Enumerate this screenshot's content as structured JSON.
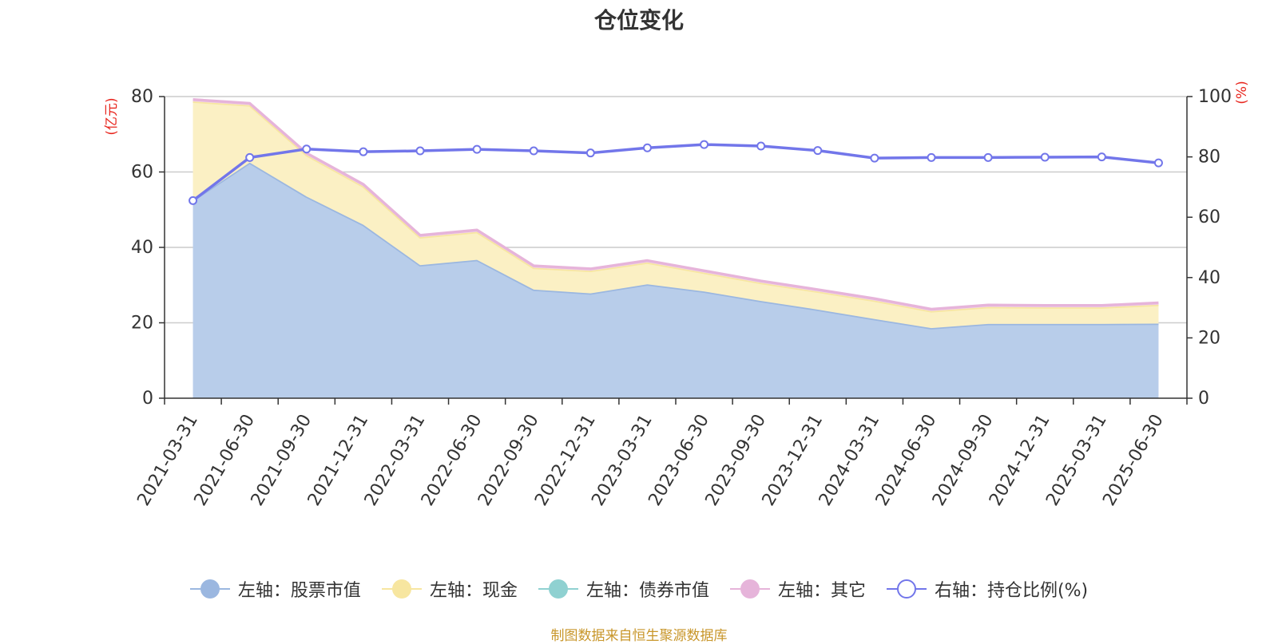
{
  "chart_data": {
    "type": "area",
    "title": "仓位变化",
    "y_left_unit": "(亿元)",
    "y_right_unit": "(%)",
    "ylim_left": [
      0,
      80
    ],
    "ylim_right": [
      0,
      100
    ],
    "y_left_ticks": [
      0,
      20,
      40,
      60,
      80
    ],
    "y_right_ticks": [
      0,
      20,
      40,
      60,
      80,
      100
    ],
    "grid": true,
    "legend_position": "bottom",
    "categories": [
      "2021-03-31",
      "2021-06-30",
      "2021-09-30",
      "2021-12-31",
      "2022-03-31",
      "2022-06-30",
      "2022-09-30",
      "2022-12-31",
      "2023-03-31",
      "2023-06-30",
      "2023-09-30",
      "2023-12-31",
      "2024-03-31",
      "2024-06-30",
      "2024-09-30",
      "2024-12-31",
      "2025-03-31",
      "2025-06-30"
    ],
    "series": [
      {
        "name": "左轴：股票市值",
        "axis": "left",
        "kind": "stacked-area",
        "color": "#9bb7e0",
        "fill": "#b8cdea",
        "values": [
          52.5,
          62.5,
          53.5,
          46.0,
          35.3,
          36.7,
          28.8,
          27.8,
          30.2,
          28.3,
          25.8,
          23.5,
          21.0,
          18.6,
          19.7,
          19.7,
          19.7,
          19.8
        ]
      },
      {
        "name": "左轴：现金",
        "axis": "left",
        "kind": "stacked-area",
        "color": "#f7e6a0",
        "fill": "#fbf0c4",
        "values": [
          26.2,
          15.2,
          11.0,
          10.2,
          7.4,
          7.4,
          5.8,
          6.0,
          5.8,
          5.0,
          4.8,
          4.8,
          4.9,
          4.5,
          4.5,
          4.4,
          4.4,
          5.0
        ]
      },
      {
        "name": "左轴：债券市值",
        "axis": "left",
        "kind": "stacked-area",
        "color": "#8fd1d1",
        "fill": "#c8eaea",
        "values": [
          0,
          0,
          0,
          0,
          0,
          0,
          0,
          0,
          0,
          0,
          0,
          0,
          0,
          0,
          0,
          0,
          0,
          0
        ]
      },
      {
        "name": "左轴：其它",
        "axis": "left",
        "kind": "stacked-area",
        "color": "#e6b4da",
        "fill": "#f3d6ec",
        "values": [
          0.5,
          0.5,
          0.5,
          0.5,
          0.5,
          0.5,
          0.5,
          0.5,
          0.5,
          0.5,
          0.5,
          0.5,
          0.5,
          0.5,
          0.5,
          0.5,
          0.5,
          0.5
        ]
      },
      {
        "name": "右轴：持仓比例(%)",
        "axis": "right",
        "kind": "line",
        "color": "#7276ea",
        "values": [
          65.5,
          79.8,
          82.6,
          81.7,
          82.0,
          82.5,
          82.0,
          81.3,
          83.0,
          84.1,
          83.6,
          82.1,
          79.6,
          79.8,
          79.8,
          79.9,
          80.0,
          78.0
        ]
      }
    ]
  },
  "source_note": "制图数据来自恒生聚源数据库"
}
